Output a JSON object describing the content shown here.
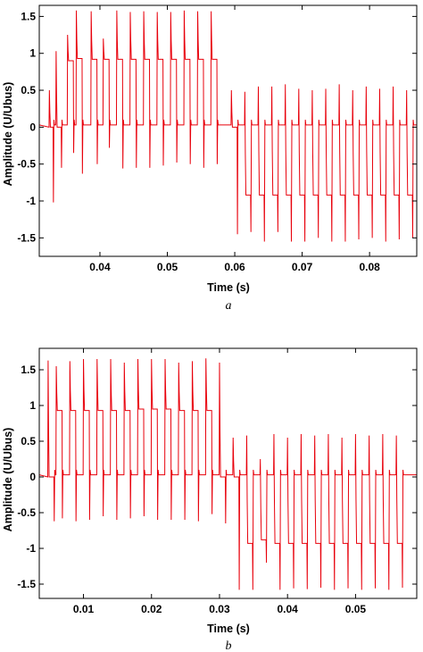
{
  "chart_data": [
    {
      "type": "line",
      "caption": "a",
      "xlabel": "Time (s)",
      "ylabel": "Amplitude (U/Ubus)",
      "xlim": [
        0.031,
        0.087
      ],
      "ylim": [
        -1.75,
        1.65
      ],
      "xticks": [
        0.04,
        0.05,
        0.06,
        0.07,
        0.08
      ],
      "xtick_labels": [
        "0.04",
        "0.05",
        "0.06",
        "0.07",
        "0.08"
      ],
      "yticks": [
        1.5,
        1,
        0.5,
        0,
        -0.5,
        -1,
        -1.5
      ],
      "ytick_labels": [
        "1.5",
        "1",
        "0.5",
        "0",
        "-0.5",
        "-1",
        "-1.5"
      ],
      "series": [
        {
          "color": "#e8000b",
          "pulses": [
            {
              "t": 0.0325,
              "w": 0.0006,
              "level": 0.0,
              "overshoot": 0.5,
              "undershoot": -1.02
            },
            {
              "t": 0.0335,
              "w": 0.0008,
              "level": 0.0,
              "overshoot": 1.03,
              "undershoot": -0.55
            },
            {
              "t": 0.0352,
              "w": 0.0009,
              "level": 0.9,
              "overshoot": 1.25,
              "undershoot": -0.35
            },
            {
              "t": 0.0365,
              "w": 0.0009,
              "level": 0.93,
              "overshoot": 1.58,
              "undershoot": -0.63
            },
            {
              "t": 0.0387,
              "w": 0.0009,
              "level": 0.92,
              "overshoot": 1.57,
              "undershoot": -0.5
            },
            {
              "t": 0.0405,
              "w": 0.0009,
              "level": 0.92,
              "overshoot": 1.2,
              "undershoot": -0.28
            },
            {
              "t": 0.0425,
              "w": 0.0009,
              "level": 0.92,
              "overshoot": 1.58,
              "undershoot": -0.56
            },
            {
              "t": 0.0445,
              "w": 0.0009,
              "level": 0.92,
              "overshoot": 1.56,
              "undershoot": -0.55
            },
            {
              "t": 0.0465,
              "w": 0.0009,
              "level": 0.92,
              "overshoot": 1.57,
              "undershoot": -0.55
            },
            {
              "t": 0.0485,
              "w": 0.0009,
              "level": 0.92,
              "overshoot": 1.56,
              "undershoot": -0.52
            },
            {
              "t": 0.0505,
              "w": 0.0009,
              "level": 0.92,
              "overshoot": 1.56,
              "undershoot": -0.48
            },
            {
              "t": 0.0525,
              "w": 0.0009,
              "level": 0.92,
              "overshoot": 1.58,
              "undershoot": -0.5
            },
            {
              "t": 0.0545,
              "w": 0.0009,
              "level": 0.92,
              "overshoot": 1.57,
              "undershoot": -0.55
            },
            {
              "t": 0.0565,
              "w": 0.0009,
              "level": 0.92,
              "overshoot": 1.57,
              "undershoot": -0.5
            },
            {
              "t": 0.0595,
              "w": 0.0009,
              "level": 0.0,
              "overshoot": 0.5,
              "undershoot": -1.45
            },
            {
              "t": 0.0615,
              "w": 0.0009,
              "level": -0.92,
              "overshoot": 0.48,
              "undershoot": -1.42
            },
            {
              "t": 0.0635,
              "w": 0.0009,
              "level": -0.92,
              "overshoot": 0.55,
              "undershoot": -1.55
            },
            {
              "t": 0.0655,
              "w": 0.0009,
              "level": -0.92,
              "overshoot": 0.55,
              "undershoot": -1.42
            },
            {
              "t": 0.0675,
              "w": 0.0009,
              "level": -0.92,
              "overshoot": 0.58,
              "undershoot": -1.55
            },
            {
              "t": 0.0695,
              "w": 0.0009,
              "level": -0.92,
              "overshoot": 0.52,
              "undershoot": -1.55
            },
            {
              "t": 0.0715,
              "w": 0.0009,
              "level": -0.92,
              "overshoot": 0.5,
              "undershoot": -1.5
            },
            {
              "t": 0.0735,
              "w": 0.0009,
              "level": -0.92,
              "overshoot": 0.52,
              "undershoot": -1.55
            },
            {
              "t": 0.0755,
              "w": 0.0009,
              "level": -0.92,
              "overshoot": 0.58,
              "undershoot": -1.55
            },
            {
              "t": 0.0775,
              "w": 0.0009,
              "level": -0.92,
              "overshoot": 0.5,
              "undershoot": -1.52
            },
            {
              "t": 0.0795,
              "w": 0.0009,
              "level": -0.92,
              "overshoot": 0.55,
              "undershoot": -1.5
            },
            {
              "t": 0.0815,
              "w": 0.0009,
              "level": -0.92,
              "overshoot": 0.52,
              "undershoot": -1.55
            },
            {
              "t": 0.0835,
              "w": 0.0009,
              "level": -0.92,
              "overshoot": 0.55,
              "undershoot": -1.52
            },
            {
              "t": 0.0855,
              "w": 0.0009,
              "level": -0.92,
              "overshoot": 0.5,
              "undershoot": -1.5
            }
          ]
        }
      ]
    },
    {
      "type": "line",
      "caption": "b",
      "xlabel": "Time (s)",
      "ylabel": "Amplitude (U/Ubus)",
      "xlim": [
        0.0035,
        0.059
      ],
      "ylim": [
        -1.7,
        1.8
      ],
      "xticks": [
        0.01,
        0.02,
        0.03,
        0.04,
        0.05
      ],
      "xtick_labels": [
        "0.01",
        "0.02",
        "0.03",
        "0.04",
        "0.05"
      ],
      "yticks": [
        1.5,
        1,
        0.5,
        0,
        -0.5,
        -1,
        -1.5
      ],
      "ytick_labels": [
        "1.5",
        "1",
        "0.5",
        "0",
        "-0.5",
        "-1",
        "-1.5"
      ],
      "series": [
        {
          "color": "#e8000b",
          "pulses": [
            {
              "t": 0.0048,
              "w": 0.0009,
              "level": 0.0,
              "overshoot": 1.63,
              "undershoot": -0.62
            },
            {
              "t": 0.006,
              "w": 0.0009,
              "level": 0.93,
              "overshoot": 1.55,
              "undershoot": -0.58
            },
            {
              "t": 0.008,
              "w": 0.0009,
              "level": 0.93,
              "overshoot": 1.62,
              "undershoot": -0.62
            },
            {
              "t": 0.01,
              "w": 0.0009,
              "level": 0.93,
              "overshoot": 1.65,
              "undershoot": -0.6
            },
            {
              "t": 0.012,
              "w": 0.0009,
              "level": 0.93,
              "overshoot": 1.65,
              "undershoot": -0.55
            },
            {
              "t": 0.014,
              "w": 0.0009,
              "level": 0.93,
              "overshoot": 1.65,
              "undershoot": -0.6
            },
            {
              "t": 0.016,
              "w": 0.0009,
              "level": 0.93,
              "overshoot": 1.6,
              "undershoot": -0.58
            },
            {
              "t": 0.018,
              "w": 0.0009,
              "level": 0.95,
              "overshoot": 1.65,
              "undershoot": -0.55
            },
            {
              "t": 0.02,
              "w": 0.0009,
              "level": 0.95,
              "overshoot": 1.65,
              "undershoot": -0.6
            },
            {
              "t": 0.022,
              "w": 0.0009,
              "level": 0.95,
              "overshoot": 1.65,
              "undershoot": -0.6
            },
            {
              "t": 0.024,
              "w": 0.0009,
              "level": 0.93,
              "overshoot": 1.6,
              "undershoot": -0.6
            },
            {
              "t": 0.026,
              "w": 0.0009,
              "level": 0.93,
              "overshoot": 1.62,
              "undershoot": -0.62
            },
            {
              "t": 0.028,
              "w": 0.0009,
              "level": 0.93,
              "overshoot": 1.66,
              "undershoot": -0.52
            },
            {
              "t": 0.03,
              "w": 0.0009,
              "level": 0.0,
              "overshoot": 1.6,
              "undershoot": -0.65
            },
            {
              "t": 0.032,
              "w": 0.0009,
              "level": 0.0,
              "overshoot": 0.55,
              "undershoot": -1.58
            },
            {
              "t": 0.034,
              "w": 0.0009,
              "level": -0.93,
              "overshoot": 0.58,
              "undershoot": -1.58
            },
            {
              "t": 0.036,
              "w": 0.0009,
              "level": -0.88,
              "overshoot": 0.25,
              "undershoot": -1.2
            },
            {
              "t": 0.038,
              "w": 0.0009,
              "level": -0.93,
              "overshoot": 0.6,
              "undershoot": -1.58
            },
            {
              "t": 0.04,
              "w": 0.0009,
              "level": -0.93,
              "overshoot": 0.55,
              "undershoot": -1.56
            },
            {
              "t": 0.042,
              "w": 0.0009,
              "level": -0.93,
              "overshoot": 0.6,
              "undershoot": -1.57
            },
            {
              "t": 0.044,
              "w": 0.0009,
              "level": -0.93,
              "overshoot": 0.58,
              "undershoot": -1.55
            },
            {
              "t": 0.046,
              "w": 0.0009,
              "level": -0.93,
              "overshoot": 0.6,
              "undershoot": -1.58
            },
            {
              "t": 0.048,
              "w": 0.0009,
              "level": -0.93,
              "overshoot": 0.55,
              "undershoot": -1.56
            },
            {
              "t": 0.05,
              "w": 0.0009,
              "level": -0.93,
              "overshoot": 0.6,
              "undershoot": -1.58
            },
            {
              "t": 0.052,
              "w": 0.0009,
              "level": -0.93,
              "overshoot": 0.58,
              "undershoot": -1.56
            },
            {
              "t": 0.054,
              "w": 0.0009,
              "level": -0.93,
              "overshoot": 0.6,
              "undershoot": -1.58
            },
            {
              "t": 0.056,
              "w": 0.0009,
              "level": -0.93,
              "overshoot": 0.58,
              "undershoot": -1.55
            }
          ]
        }
      ]
    }
  ]
}
